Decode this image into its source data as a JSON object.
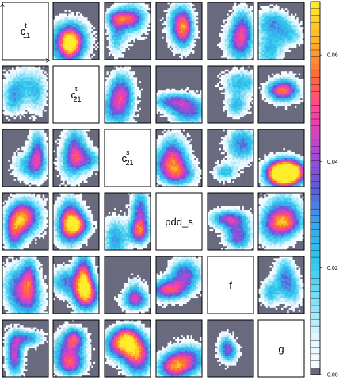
{
  "chart_data": {
    "type": "heatmap",
    "layout": "6x6 pairwise matrix of density heatmaps with labels on the diagonal",
    "diagonal_labels": [
      {
        "base": "c",
        "sup": "t",
        "sub": "11"
      },
      {
        "base": "c",
        "sup": "t",
        "sub": "21"
      },
      {
        "base": "c",
        "sup": "s",
        "sub": "21"
      },
      {
        "base": "pdd_s",
        "sup": "",
        "sub": ""
      },
      {
        "base": "f",
        "sup": "",
        "sub": ""
      },
      {
        "base": "g",
        "sup": "",
        "sub": ""
      }
    ],
    "colorbar": {
      "position": "right",
      "range": [
        0.0,
        0.07
      ],
      "tick_values": [
        0.0,
        0.02,
        0.04,
        0.06
      ],
      "tick_labels": [
        "0.00",
        "0.02",
        "0.04",
        "0.06"
      ],
      "palette": [
        "#6a6a7e",
        "#ffffff",
        "#e0f6ff",
        "#7fe0f6",
        "#2fc8ee",
        "#3aa8ec",
        "#5a5cd8",
        "#b048d8",
        "#ff3fa0",
        "#ff6a3a",
        "#ffb52a",
        "#ffec2a"
      ]
    }
  }
}
